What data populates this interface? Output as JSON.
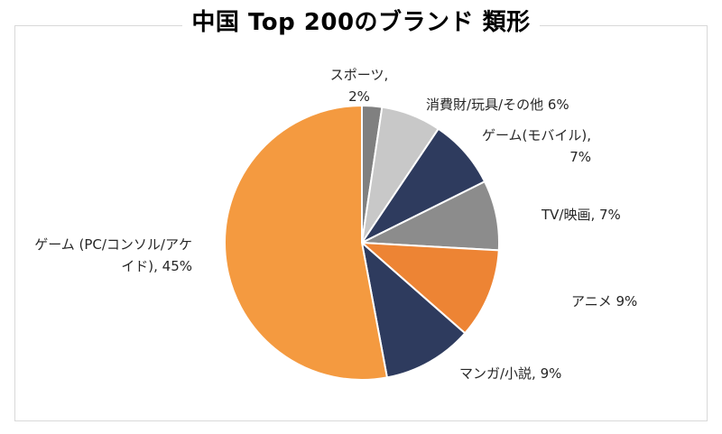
{
  "title": "中国 Top 200のブランド 類形",
  "chart_data": {
    "type": "pie",
    "title": "中国 Top 200のブランド 類形",
    "start_angle_deg": 0,
    "direction": "clockwise",
    "slices": [
      {
        "name": "スポーツ",
        "value": 2,
        "color": "#808080",
        "label_lines": [
          "スポーツ,",
          "2%"
        ]
      },
      {
        "name": "消費財/玩具/その他",
        "value": 6,
        "color": "#c8c8c8",
        "label_lines": [
          "消費財/玩具/その他 6%"
        ]
      },
      {
        "name": "ゲーム(モバイル)",
        "value": 7,
        "color": "#2e3b5e",
        "label_lines": [
          "ゲーム(モバイル),",
          "7%"
        ]
      },
      {
        "name": "TV/映画",
        "value": 7,
        "color": "#8c8c8c",
        "label_lines": [
          "TV/映画, 7%"
        ]
      },
      {
        "name": "アニメ",
        "value": 9,
        "color": "#ed8434",
        "label_lines": [
          "アニメ 9%"
        ]
      },
      {
        "name": "マンガ/小説",
        "value": 9,
        "color": "#2e3b5e",
        "label_lines": [
          "マンガ/小説, 9%"
        ]
      },
      {
        "name": "ゲーム (PC/コンソル/アケイド)",
        "value": 45,
        "color": "#f49a40",
        "label_lines": [
          "ゲーム (PC/コンソル/アケ",
          "イド), 45%"
        ]
      }
    ]
  }
}
